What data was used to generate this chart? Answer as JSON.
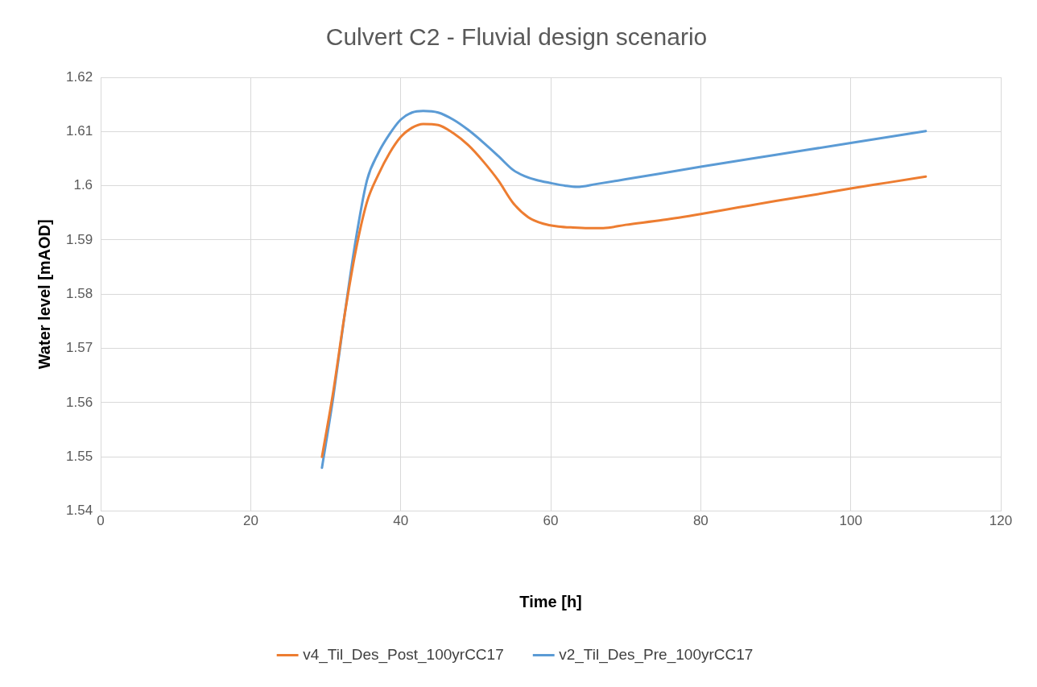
{
  "chart_data": {
    "type": "line",
    "title": "Culvert C2 - Fluvial design scenario",
    "xlabel": "Time [h]",
    "ylabel": "Water level [mAOD]",
    "xlim": [
      0,
      120
    ],
    "xticks": [
      0,
      20,
      40,
      60,
      80,
      100,
      120
    ],
    "ylim": [
      1.54,
      1.62
    ],
    "yticks": [
      1.54,
      1.55,
      1.56,
      1.57,
      1.58,
      1.59,
      1.6,
      1.61,
      1.62
    ],
    "grid": true,
    "legend": "bottom",
    "marker": "none",
    "line_style": "solid",
    "series": [
      {
        "name": "v4_Til_Des_Post_100yrCC17",
        "color": "#ed7d31",
        "x": [
          29.5,
          31,
          32.5,
          34,
          35.5,
          37,
          38.5,
          40,
          41.5,
          43,
          45,
          47,
          49,
          51,
          53,
          55,
          57,
          59,
          61,
          63,
          65,
          67,
          70,
          75,
          80,
          85,
          90,
          95,
          100,
          105,
          110
        ],
        "values": [
          1.55,
          1.562,
          1.576,
          1.588,
          1.597,
          1.602,
          1.606,
          1.609,
          1.6107,
          1.6114,
          1.6112,
          1.6097,
          1.6075,
          1.6045,
          1.601,
          1.5968,
          1.5942,
          1.593,
          1.5925,
          1.5923,
          1.5922,
          1.5922,
          1.5928,
          1.5937,
          1.5948,
          1.596,
          1.5972,
          1.5983,
          1.5995,
          1.6006,
          1.6017
        ]
      },
      {
        "name": "v2_Til_Des_Pre_100yrCC17",
        "color": "#5b9bd5",
        "x": [
          29.5,
          31,
          32.5,
          34,
          35.5,
          37,
          38.5,
          40,
          41.5,
          43,
          45,
          47,
          49,
          51,
          53,
          55,
          56.5,
          58,
          60,
          62,
          63.5,
          66,
          70,
          80,
          90,
          100,
          110
        ],
        "values": [
          1.548,
          1.561,
          1.576,
          1.59,
          1.601,
          1.606,
          1.6095,
          1.6122,
          1.6135,
          1.6138,
          1.6135,
          1.6122,
          1.6103,
          1.608,
          1.6055,
          1.6029,
          1.6018,
          1.6011,
          1.6005,
          1.6,
          1.5998,
          1.6003,
          1.6012,
          1.6035,
          1.6057,
          1.6079,
          1.6101
        ]
      }
    ]
  }
}
